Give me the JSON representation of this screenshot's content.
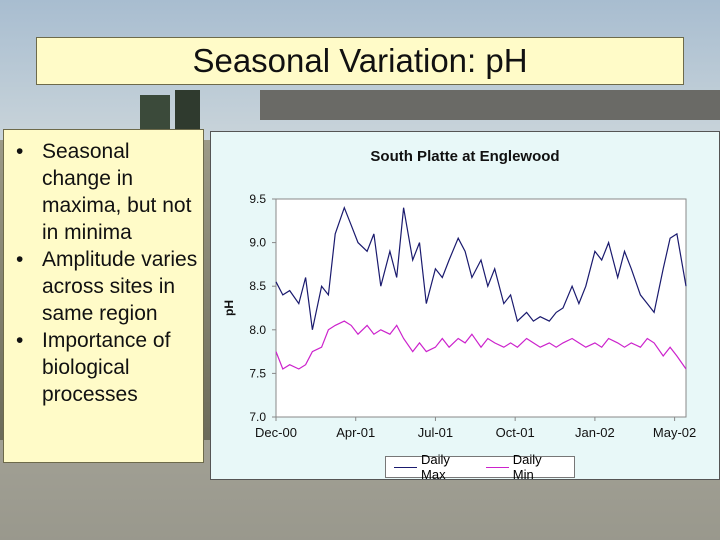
{
  "slide": {
    "title": "Seasonal Variation: pH",
    "bullets": [
      "Seasonal change in maxima, but not in minima",
      "Amplitude varies across sites in same region",
      "Importance of biological processes"
    ],
    "bullet_glyph": "•"
  },
  "colors": {
    "title_fill": "#fffbc8",
    "chart_bg": "#e8f8f8",
    "max_series": "#1a1a6e",
    "min_series": "#cc22cc"
  },
  "chart_data": {
    "type": "line",
    "title": "South Platte at Englewood",
    "xlabel": "",
    "ylabel": "pH",
    "ylim": [
      7.0,
      9.5
    ],
    "yticks": [
      "9.5",
      "9.0",
      "8.5",
      "8.0",
      "7.5",
      "7.0"
    ],
    "xticks": [
      "Dec-00",
      "Apr-01",
      "Jul-01",
      "Oct-01",
      "Jan-02",
      "May-02"
    ],
    "x_units": "months from Dec-00",
    "grid": false,
    "legend_position": "bottom",
    "series": [
      {
        "name": "Daily Max",
        "x": [
          0,
          0.3,
          0.6,
          1.0,
          1.3,
          1.6,
          2.0,
          2.3,
          2.6,
          3.0,
          3.3,
          3.6,
          4.0,
          4.3,
          4.6,
          5.0,
          5.3,
          5.6,
          6.0,
          6.3,
          6.6,
          7.0,
          7.3,
          7.6,
          8.0,
          8.3,
          8.6,
          9.0,
          9.3,
          9.6,
          10.0,
          10.3,
          10.6,
          11.0,
          11.3,
          11.6,
          12.0,
          12.3,
          12.6,
          13.0,
          13.3,
          13.6,
          14.0,
          14.3,
          14.6,
          15.0,
          15.3,
          15.6,
          16.0,
          16.3,
          16.6,
          17.0,
          17.3,
          17.6,
          18.0
        ],
        "values": [
          8.55,
          8.4,
          8.45,
          8.3,
          8.6,
          8.0,
          8.5,
          8.4,
          9.1,
          9.4,
          9.2,
          9.0,
          8.9,
          9.1,
          8.5,
          8.9,
          8.6,
          9.4,
          8.8,
          9.0,
          8.3,
          8.7,
          8.6,
          8.8,
          9.05,
          8.9,
          8.6,
          8.8,
          8.5,
          8.7,
          8.3,
          8.4,
          8.1,
          8.2,
          8.1,
          8.15,
          8.1,
          8.2,
          8.25,
          8.5,
          8.3,
          8.5,
          8.9,
          8.8,
          9.0,
          8.6,
          8.9,
          8.7,
          8.4,
          8.3,
          8.2,
          8.7,
          9.05,
          9.1,
          8.5
        ]
      },
      {
        "name": "Daily Min",
        "x": [
          0,
          0.3,
          0.6,
          1.0,
          1.3,
          1.6,
          2.0,
          2.3,
          2.6,
          3.0,
          3.3,
          3.6,
          4.0,
          4.3,
          4.6,
          5.0,
          5.3,
          5.6,
          6.0,
          6.3,
          6.6,
          7.0,
          7.3,
          7.6,
          8.0,
          8.3,
          8.6,
          9.0,
          9.3,
          9.6,
          10.0,
          10.3,
          10.6,
          11.0,
          11.3,
          11.6,
          12.0,
          12.3,
          12.6,
          13.0,
          13.3,
          13.6,
          14.0,
          14.3,
          14.6,
          15.0,
          15.3,
          15.6,
          16.0,
          16.3,
          16.6,
          17.0,
          17.3,
          17.6,
          18.0
        ],
        "values": [
          7.75,
          7.55,
          7.6,
          7.55,
          7.6,
          7.75,
          7.8,
          8.0,
          8.05,
          8.1,
          8.05,
          7.95,
          8.05,
          7.95,
          8.0,
          7.95,
          8.05,
          7.9,
          7.75,
          7.85,
          7.75,
          7.8,
          7.9,
          7.8,
          7.9,
          7.85,
          7.95,
          7.8,
          7.9,
          7.85,
          7.8,
          7.85,
          7.8,
          7.9,
          7.85,
          7.8,
          7.85,
          7.8,
          7.85,
          7.9,
          7.85,
          7.8,
          7.85,
          7.8,
          7.9,
          7.85,
          7.8,
          7.85,
          7.8,
          7.9,
          7.85,
          7.7,
          7.8,
          7.7,
          7.55
        ]
      }
    ]
  }
}
